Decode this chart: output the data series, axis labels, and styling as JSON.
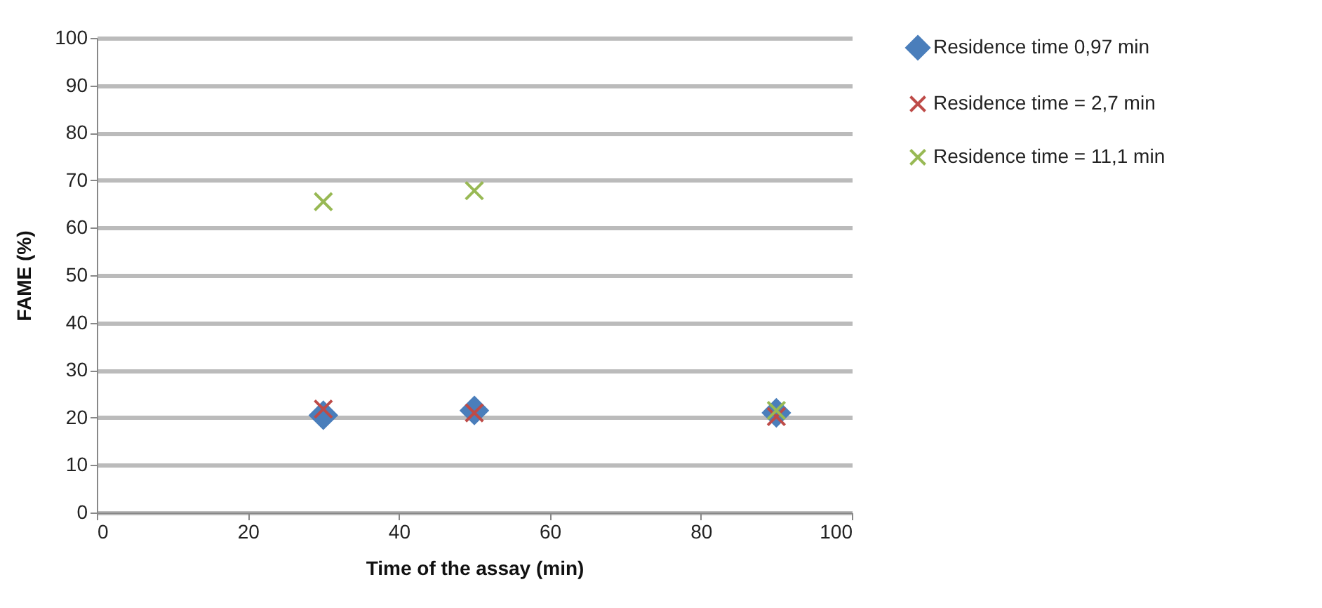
{
  "chart_data": {
    "type": "scatter",
    "xlabel": "Time of the assay (min)",
    "ylabel": "FAME (%)",
    "xlim": [
      0,
      100
    ],
    "xticks": [
      0,
      20,
      40,
      60,
      80,
      100
    ],
    "ylim": [
      0,
      100
    ],
    "yticks": [
      0,
      10,
      20,
      30,
      40,
      50,
      60,
      70,
      80,
      90,
      100
    ],
    "grid": "y",
    "legend": "right",
    "x": [
      30,
      50,
      90
    ],
    "series": [
      {
        "name": "Residence time 0,97 min",
        "color": "#4a7ebb",
        "marker": "diamond",
        "values": [
          20.5,
          21.5,
          21
        ]
      },
      {
        "name": "Residence time = 2,7 min",
        "color": "#be4b48",
        "marker": "cross",
        "values": [
          21.8,
          21,
          20.2
        ]
      },
      {
        "name": "Residence time = 11,1 min",
        "color": "#98b954",
        "marker": "cross",
        "values": [
          65.5,
          67.8,
          21.5
        ]
      }
    ]
  }
}
